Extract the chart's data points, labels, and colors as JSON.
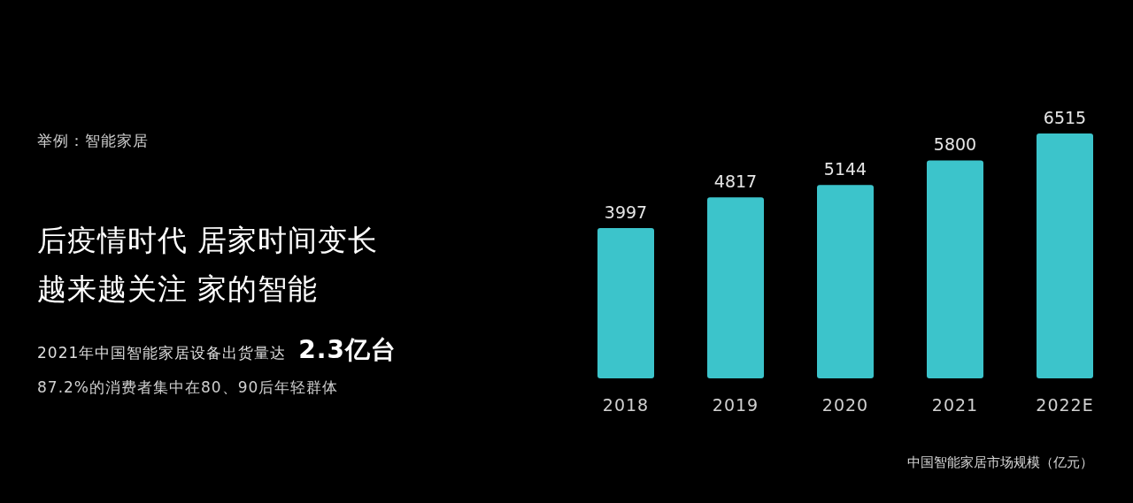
{
  "chart_data": {
    "type": "bar",
    "title": "中国智能家居市场规模（亿元）",
    "categories": [
      "2018",
      "2019",
      "2020",
      "2021",
      "2022E"
    ],
    "values": [
      3997,
      4817,
      5144,
      5800,
      6515
    ],
    "color": "#3cc4cb",
    "data_labels": true,
    "annotations": [
      "举例：智能家居",
      "后疫情时代 居家时间变长",
      "越来越关注 家的智能",
      "2021年中国智能家居设备出货量达",
      "2.3亿台",
      "87.2%的消费者集中在80、90后年轻群体"
    ]
  }
}
